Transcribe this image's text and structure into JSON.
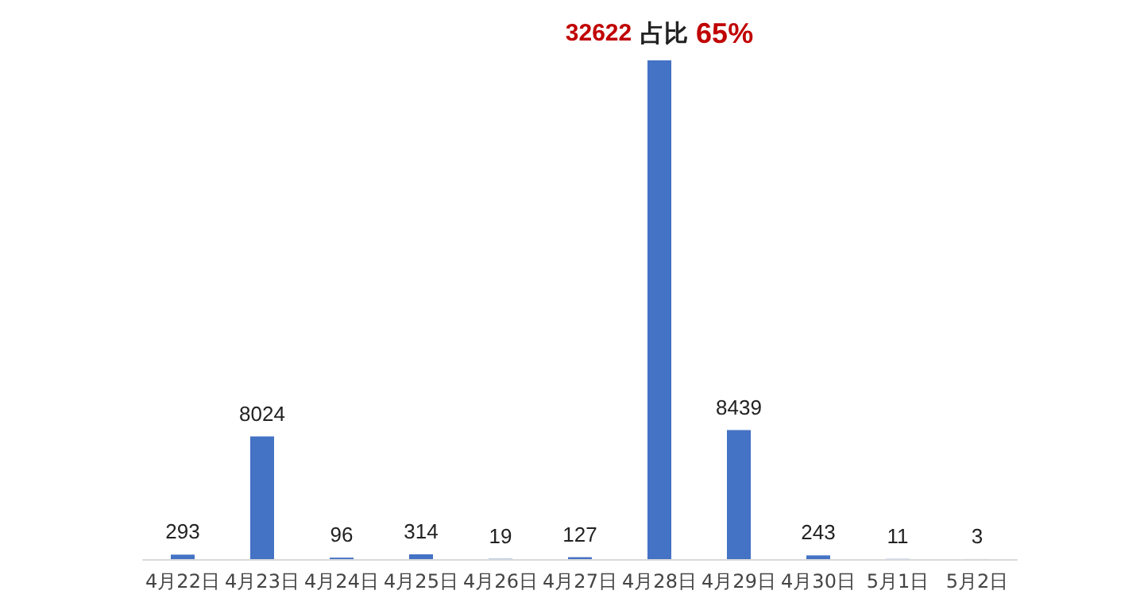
{
  "chart_data": {
    "type": "bar",
    "categories": [
      "4月22日",
      "4月23日",
      "4月24日",
      "4月25日",
      "4月26日",
      "4月27日",
      "4月28日",
      "4月29日",
      "4月30日",
      "5月1日",
      "5月2日"
    ],
    "values": [
      293,
      8024,
      96,
      314,
      19,
      127,
      32622,
      8439,
      243,
      11,
      3
    ],
    "value_labels": [
      "293",
      "8024",
      "96",
      "314",
      "19",
      "127",
      "32622 占比 65%",
      "8439",
      "243",
      "11",
      "3"
    ],
    "color": "#4472c4"
  }
}
